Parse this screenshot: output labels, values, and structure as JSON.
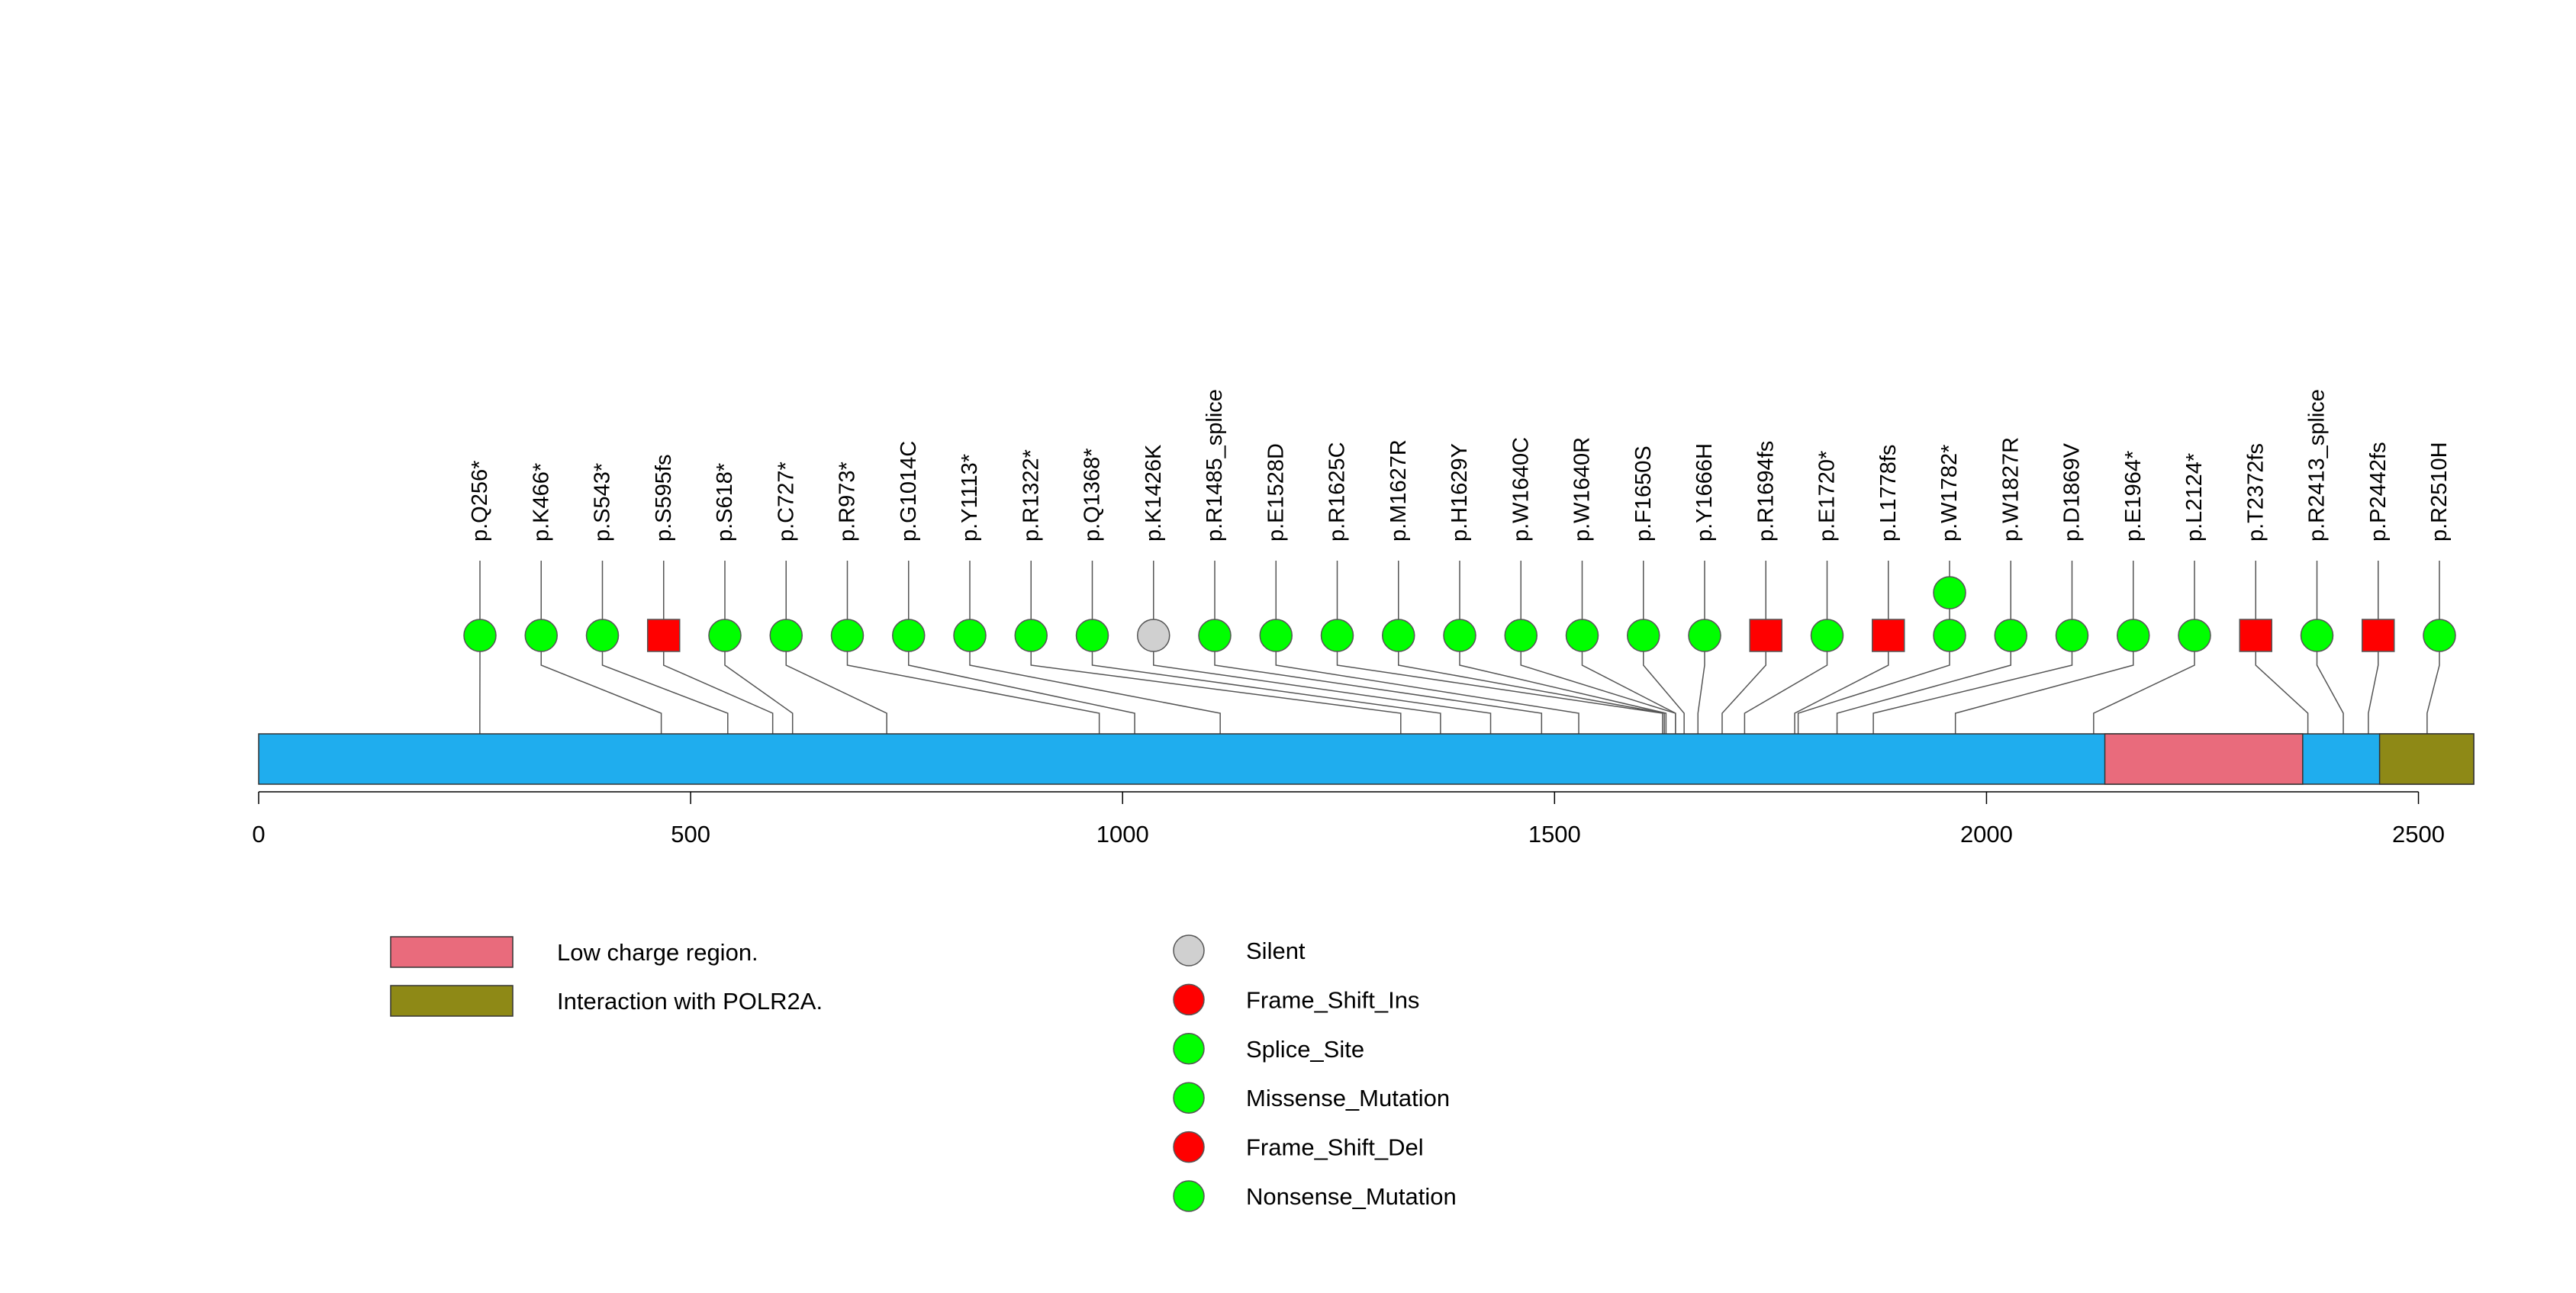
{
  "chart_data": {
    "type": "lollipop",
    "axis": {
      "min": 0,
      "max": 2564,
      "ticks": [
        0,
        500,
        1000,
        1500,
        2000,
        2500
      ]
    },
    "domains": [
      {
        "name": "Low charge region.",
        "start": 2137,
        "end": 2366,
        "color": "#E96B7C"
      },
      {
        "name": "Interaction with POLR2A.",
        "start": 2455,
        "end": 2564,
        "color": "#8E8916"
      }
    ],
    "protein_color": "#1FADEE",
    "legend_mutations": [
      {
        "label": "Silent",
        "color": "#D0D0D0"
      },
      {
        "label": "Frame_Shift_Ins",
        "color": "#FF0000"
      },
      {
        "label": "Splice_Site",
        "color": "#00FF00"
      },
      {
        "label": "Missense_Mutation",
        "color": "#00FF00"
      },
      {
        "label": "Frame_Shift_Del",
        "color": "#FF0000"
      },
      {
        "label": "Nonsense_Mutation",
        "color": "#00FF00"
      }
    ],
    "mutations": [
      {
        "label": "p.Q256*",
        "pos": 256,
        "shape": "circle",
        "color": "#00FF00",
        "count": 1
      },
      {
        "label": "p.K466*",
        "pos": 466,
        "shape": "circle",
        "color": "#00FF00",
        "count": 1
      },
      {
        "label": "p.S543*",
        "pos": 543,
        "shape": "circle",
        "color": "#00FF00",
        "count": 1
      },
      {
        "label": "p.S595fs",
        "pos": 595,
        "shape": "square",
        "color": "#FF0000",
        "count": 1
      },
      {
        "label": "p.S618*",
        "pos": 618,
        "shape": "circle",
        "color": "#00FF00",
        "count": 1
      },
      {
        "label": "p.C727*",
        "pos": 727,
        "shape": "circle",
        "color": "#00FF00",
        "count": 1
      },
      {
        "label": "p.R973*",
        "pos": 973,
        "shape": "circle",
        "color": "#00FF00",
        "count": 1
      },
      {
        "label": "p.G1014C",
        "pos": 1014,
        "shape": "circle",
        "color": "#00FF00",
        "count": 1
      },
      {
        "label": "p.Y1113*",
        "pos": 1113,
        "shape": "circle",
        "color": "#00FF00",
        "count": 1
      },
      {
        "label": "p.R1322*",
        "pos": 1322,
        "shape": "circle",
        "color": "#00FF00",
        "count": 1
      },
      {
        "label": "p.Q1368*",
        "pos": 1368,
        "shape": "circle",
        "color": "#00FF00",
        "count": 1
      },
      {
        "label": "p.K1426K",
        "pos": 1426,
        "shape": "circle",
        "color": "#D0D0D0",
        "count": 1
      },
      {
        "label": "p.R1485_splice",
        "pos": 1485,
        "shape": "circle",
        "color": "#00FF00",
        "count": 1
      },
      {
        "label": "p.E1528D",
        "pos": 1528,
        "shape": "circle",
        "color": "#00FF00",
        "count": 1
      },
      {
        "label": "p.R1625C",
        "pos": 1625,
        "shape": "circle",
        "color": "#00FF00",
        "count": 1
      },
      {
        "label": "p.M1627R",
        "pos": 1627,
        "shape": "circle",
        "color": "#00FF00",
        "count": 1
      },
      {
        "label": "p.H1629Y",
        "pos": 1629,
        "shape": "circle",
        "color": "#00FF00",
        "count": 1
      },
      {
        "label": "p.W1640C",
        "pos": 1640,
        "shape": "circle",
        "color": "#00FF00",
        "count": 1
      },
      {
        "label": "p.W1640R",
        "pos": 1640,
        "shape": "circle",
        "color": "#00FF00",
        "count": 1
      },
      {
        "label": "p.F1650S",
        "pos": 1650,
        "shape": "circle",
        "color": "#00FF00",
        "count": 1
      },
      {
        "label": "p.Y1666H",
        "pos": 1666,
        "shape": "circle",
        "color": "#00FF00",
        "count": 1
      },
      {
        "label": "p.R1694fs",
        "pos": 1694,
        "shape": "square",
        "color": "#FF0000",
        "count": 1
      },
      {
        "label": "p.E1720*",
        "pos": 1720,
        "shape": "circle",
        "color": "#00FF00",
        "count": 1
      },
      {
        "label": "p.L1778fs",
        "pos": 1778,
        "shape": "square",
        "color": "#FF0000",
        "count": 1
      },
      {
        "label": "p.W1782*",
        "pos": 1782,
        "shape": "circle",
        "color": "#00FF00",
        "count": 2
      },
      {
        "label": "p.W1827R",
        "pos": 1827,
        "shape": "circle",
        "color": "#00FF00",
        "count": 1
      },
      {
        "label": "p.D1869V",
        "pos": 1869,
        "shape": "circle",
        "color": "#00FF00",
        "count": 1
      },
      {
        "label": "p.E1964*",
        "pos": 1964,
        "shape": "circle",
        "color": "#00FF00",
        "count": 1
      },
      {
        "label": "p.L2124*",
        "pos": 2124,
        "shape": "circle",
        "color": "#00FF00",
        "count": 1
      },
      {
        "label": "p.T2372fs",
        "pos": 2372,
        "shape": "square",
        "color": "#FF0000",
        "count": 1
      },
      {
        "label": "p.R2413_splice",
        "pos": 2413,
        "shape": "circle",
        "color": "#00FF00",
        "count": 1
      },
      {
        "label": "p.P2442fs",
        "pos": 2442,
        "shape": "square",
        "color": "#FF0000",
        "count": 1
      },
      {
        "label": "p.R2510H",
        "pos": 2510,
        "shape": "circle",
        "color": "#00FF00",
        "count": 1
      }
    ]
  }
}
